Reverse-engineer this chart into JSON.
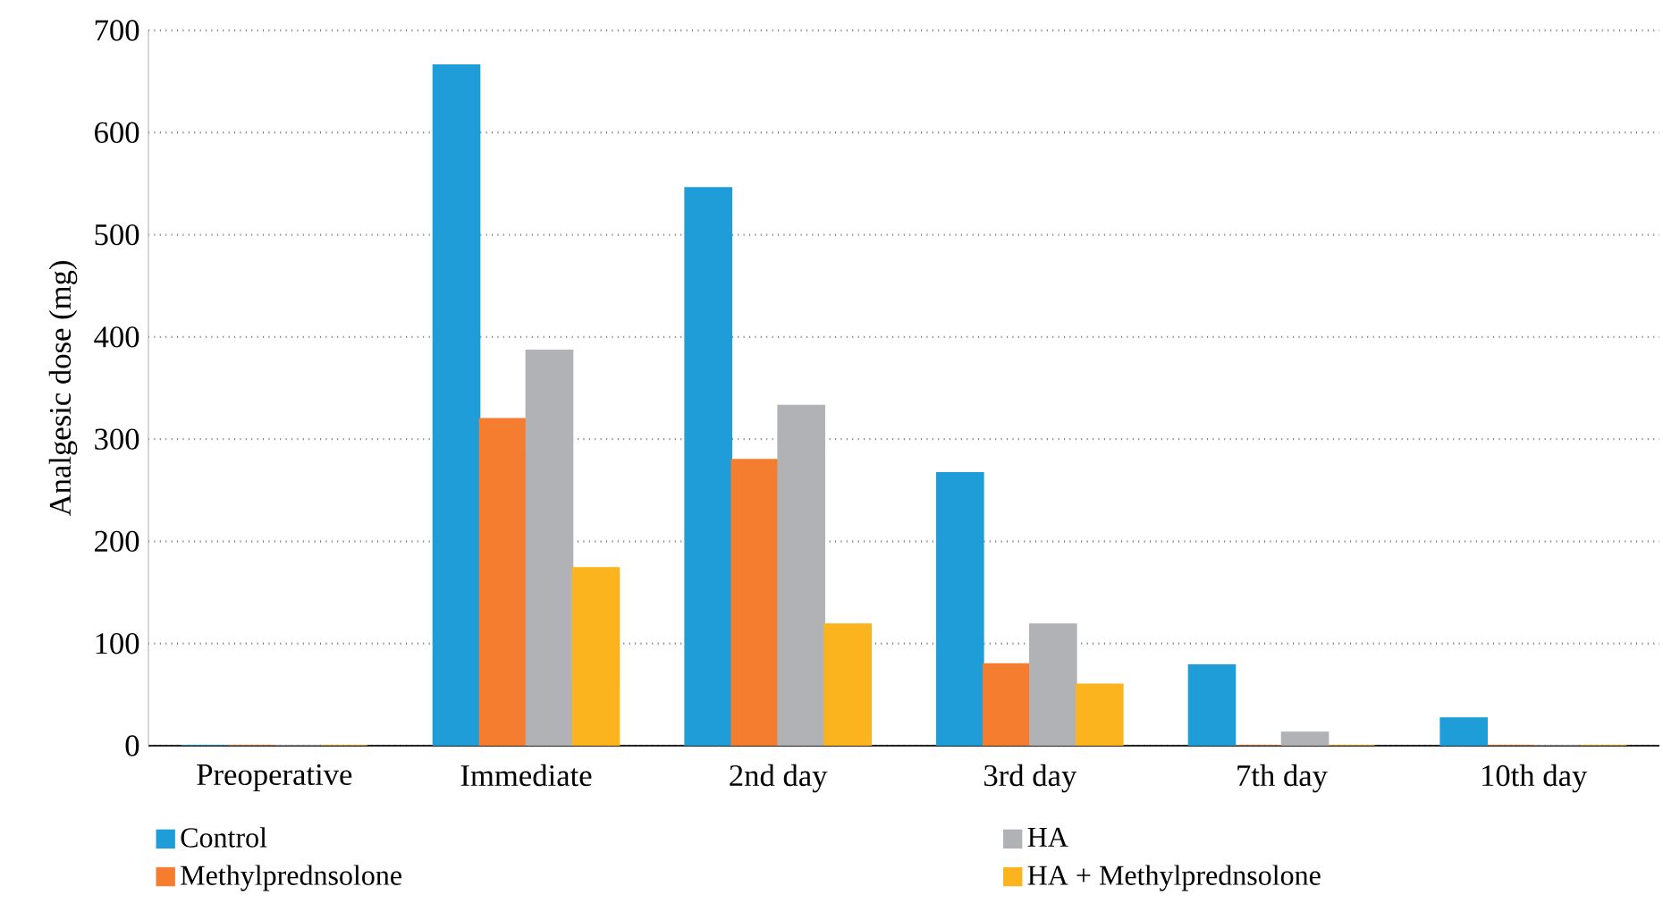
{
  "chart_data": {
    "type": "bar",
    "ylabel": "Analgesic dose (mg)",
    "categories": [
      "Preoperative",
      "Immediate",
      "2nd day",
      "3rd day",
      "7th day",
      "10th day"
    ],
    "series": [
      {
        "name": "Control",
        "color": "#1e9dd8",
        "values": [
          0,
          666,
          546,
          267,
          79,
          27
        ]
      },
      {
        "name": "Methylprednsolone",
        "color": "#f47d30",
        "values": [
          0,
          320,
          280,
          80,
          0,
          0
        ]
      },
      {
        "name": "HA",
        "color": "#b1b2b5",
        "values": [
          0,
          387,
          333,
          119,
          13,
          0
        ]
      },
      {
        "name": "HA + Methylprednsolone",
        "color": "#fbb41d",
        "values": [
          0,
          174,
          119,
          60,
          0,
          0
        ]
      }
    ],
    "ylim": [
      0,
      700
    ],
    "yticks": [
      0,
      100,
      200,
      300,
      400,
      500,
      600,
      700
    ],
    "grid": "y",
    "legend": "bottom"
  }
}
